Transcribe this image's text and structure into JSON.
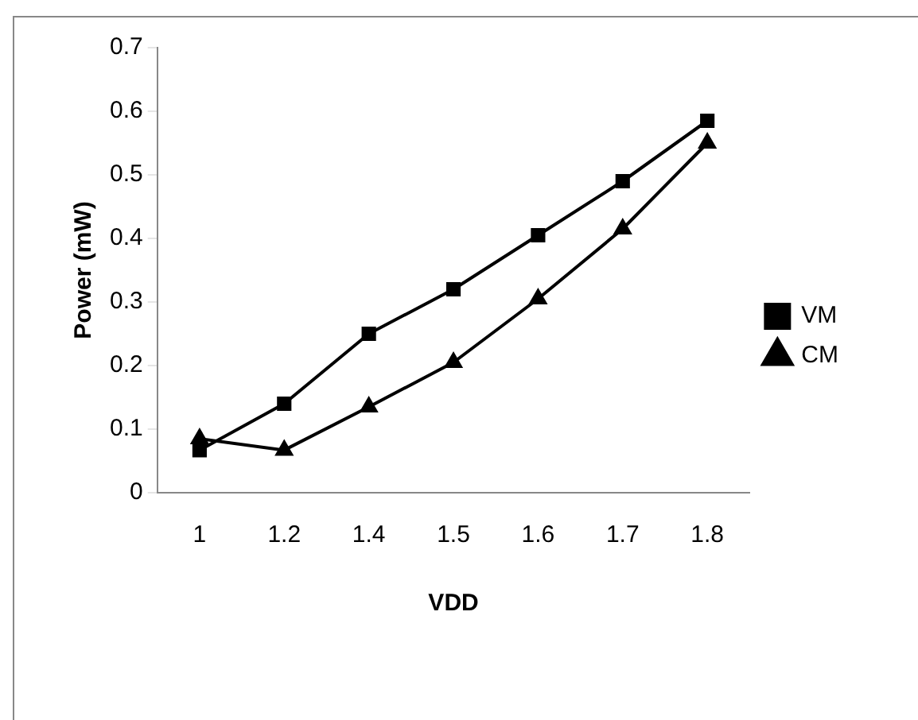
{
  "chart_data": {
    "type": "line",
    "xlabel": "VDD",
    "ylabel": "Power (mW)",
    "categories": [
      "1",
      "1.2",
      "1.4",
      "1.5",
      "1.6",
      "1.7",
      "1.8"
    ],
    "series": [
      {
        "name": "VM",
        "color": "#000000",
        "marker": "square",
        "values": [
          0.067,
          0.14,
          0.25,
          0.32,
          0.405,
          0.49,
          0.585
        ]
      },
      {
        "name": "CM",
        "color": "#000000",
        "marker": "triangle",
        "values": [
          0.085,
          0.067,
          0.135,
          0.205,
          0.305,
          0.415,
          0.55
        ]
      }
    ],
    "ylim": [
      0,
      0.7
    ],
    "yticks": [
      0,
      0.1,
      0.2,
      0.3,
      0.4,
      0.5,
      0.6,
      0.7
    ],
    "grid": false,
    "legend": "right",
    "line_style": "solid"
  }
}
